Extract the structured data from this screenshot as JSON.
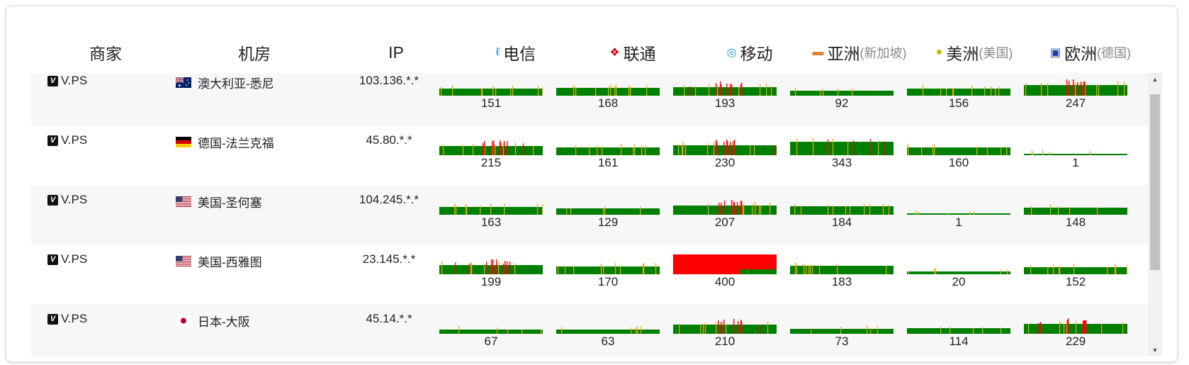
{
  "header": {
    "vendor": "商家",
    "location": "机房",
    "ip": "IP",
    "telecom": "电信",
    "unicom": "联通",
    "mobile": "移动",
    "asia": "亚洲",
    "asia_sub": "(新加坡)",
    "america": "美洲",
    "america_sub": "(美国)",
    "europe": "欧洲",
    "europe_sub": "(德国)"
  },
  "colors": {
    "good": "#008000",
    "warn": "#f0a800",
    "bad": "#ff0000"
  },
  "rows": [
    {
      "vendor": "V.PS",
      "flag": "au-flag",
      "location": "澳大利亚-悉尼",
      "ip": "103.136.*.*",
      "pings": [
        151,
        168,
        193,
        92,
        156,
        247
      ]
    },
    {
      "vendor": "V.PS",
      "flag": "de-flag",
      "location": "德国-法兰克福",
      "ip": "45.80.*.*",
      "pings": [
        215,
        161,
        230,
        343,
        160,
        1
      ]
    },
    {
      "vendor": "V.PS",
      "flag": "us-flag",
      "location": "美国-圣何塞",
      "ip": "104.245.*.*",
      "pings": [
        163,
        129,
        207,
        184,
        1,
        148
      ]
    },
    {
      "vendor": "V.PS",
      "flag": "us-flag",
      "location": "美国-西雅图",
      "ip": "23.145.*.*",
      "pings": [
        199,
        170,
        400,
        183,
        20,
        152
      ]
    },
    {
      "vendor": "V.PS",
      "flag": "jp-flag",
      "location": "日本-大阪",
      "ip": "45.14.*.*",
      "pings": [
        67,
        63,
        210,
        73,
        114,
        229
      ]
    }
  ]
}
